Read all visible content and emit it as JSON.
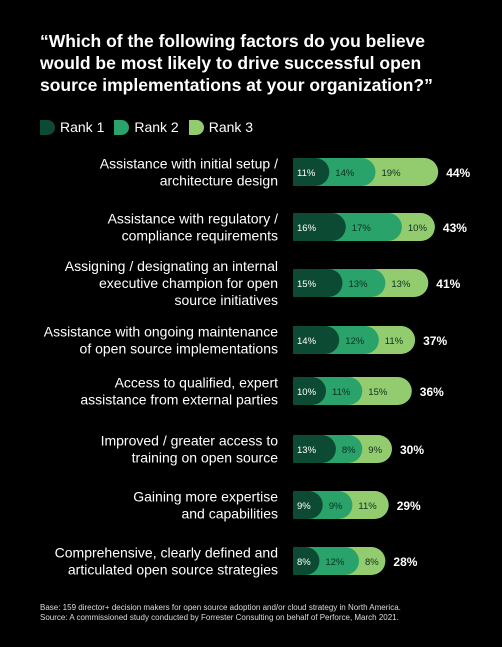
{
  "title": "“Which of the following factors do you believe would be most likely to drive successful open source implementations at your organization?”",
  "legend": [
    {
      "label": "Rank 1",
      "color": "#0d4a34"
    },
    {
      "label": "Rank 2",
      "color": "#2aa36b"
    },
    {
      "label": "Rank 3",
      "color": "#93cc6e"
    }
  ],
  "footnote": {
    "line1": "Base: 159 director+ decision makers for open source adoption and/or cloud strategy in North America.",
    "line2": "Source: A commissioned study conducted by Forrester Consulting on behalf of Perforce, March 2021."
  },
  "chart_data": {
    "type": "bar",
    "stacked": true,
    "orientation": "horizontal",
    "categories": [
      [
        "Assistance with initial setup /",
        "architecture design"
      ],
      [
        "Assistance with regulatory /",
        "compliance requirements"
      ],
      [
        "Assigning / designating an internal",
        "executive champion for open",
        "source initiatives"
      ],
      [
        "Assistance with ongoing maintenance",
        "of open source implementations"
      ],
      [
        "Access to qualified, expert",
        "assistance from external parties"
      ],
      [
        "Improved / greater access to",
        "training on open source"
      ],
      [
        "Gaining more expertise",
        "and capabilities"
      ],
      [
        "Comprehensive, clearly defined and",
        "articulated open source strategies"
      ]
    ],
    "series": [
      {
        "name": "Rank 1",
        "values": [
          11,
          16,
          15,
          14,
          10,
          13,
          9,
          8
        ],
        "labels": [
          "11%",
          "16%",
          "15%",
          "14%",
          "10%",
          "13%",
          "9%",
          "8%"
        ]
      },
      {
        "name": "Rank 2",
        "values": [
          14,
          17,
          13,
          12,
          11,
          8,
          9,
          12
        ],
        "labels": [
          "14%",
          "17%",
          "13%",
          "12%",
          "11%",
          "8%",
          "9%",
          "12%"
        ]
      },
      {
        "name": "Rank 3",
        "values": [
          19,
          10,
          13,
          11,
          15,
          9,
          11,
          8
        ],
        "labels": [
          "19%",
          "10%",
          "13%",
          "11%",
          "15%",
          "9%",
          "11%",
          "8%"
        ]
      }
    ],
    "totals": [
      "44%",
      "43%",
      "41%",
      "37%",
      "36%",
      "30%",
      "29%",
      "28%"
    ]
  }
}
